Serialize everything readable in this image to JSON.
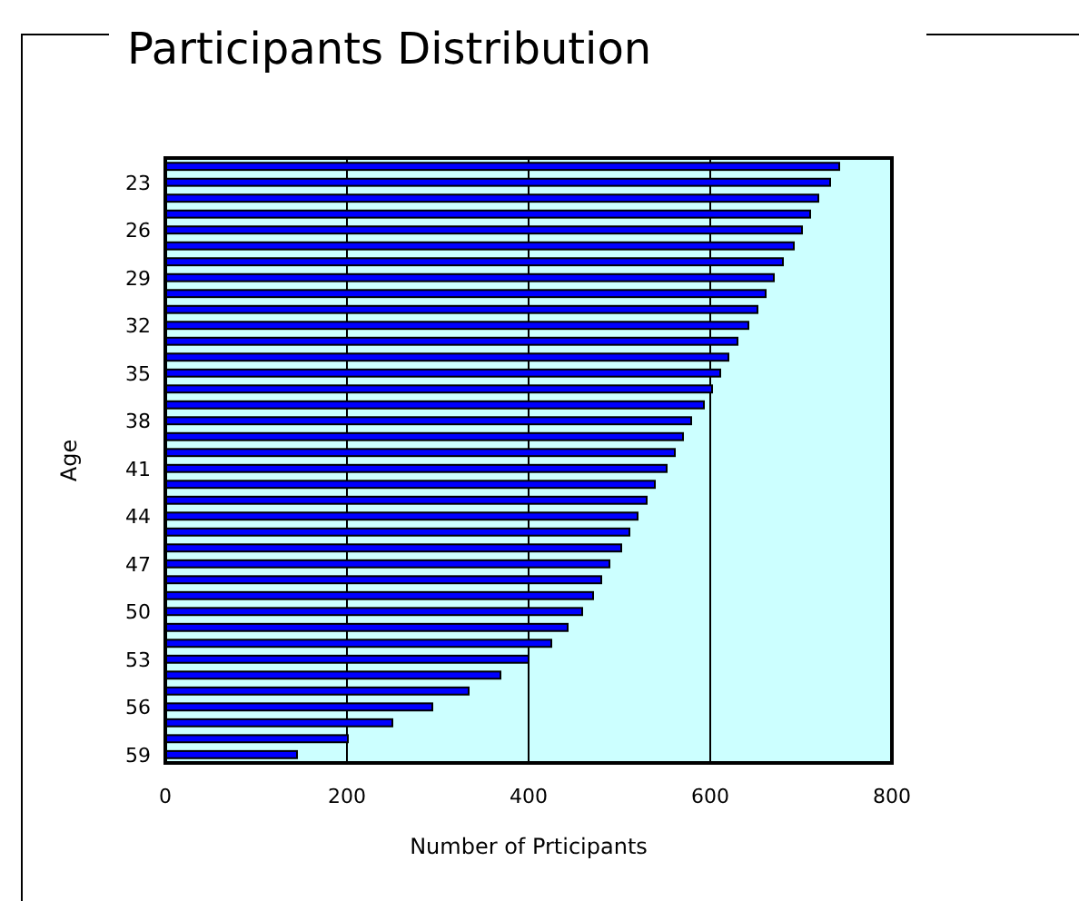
{
  "chart_data": {
    "type": "bar",
    "orientation": "horizontal",
    "title": "Participants Distribution",
    "xlabel": "Number of Prticipants",
    "ylabel": "Age",
    "categories": [
      null,
      "23",
      null,
      null,
      "26",
      null,
      null,
      "29",
      null,
      null,
      "32",
      null,
      null,
      "35",
      null,
      null,
      "38",
      null,
      null,
      "41",
      null,
      null,
      "44",
      null,
      null,
      "47",
      null,
      null,
      "50",
      null,
      null,
      "53",
      null,
      null,
      "56",
      null,
      null,
      "59"
    ],
    "values": [
      742,
      732,
      719,
      710,
      701,
      692,
      680,
      670,
      661,
      652,
      642,
      630,
      620,
      611,
      602,
      593,
      579,
      570,
      561,
      552,
      539,
      530,
      520,
      511,
      502,
      489,
      480,
      471,
      459,
      443,
      425,
      400,
      369,
      334,
      294,
      250,
      201,
      145
    ],
    "color": "#0000ff",
    "xlim": [
      0,
      800
    ],
    "xticks": [
      0,
      200,
      400,
      600,
      800
    ],
    "grid": "x"
  }
}
